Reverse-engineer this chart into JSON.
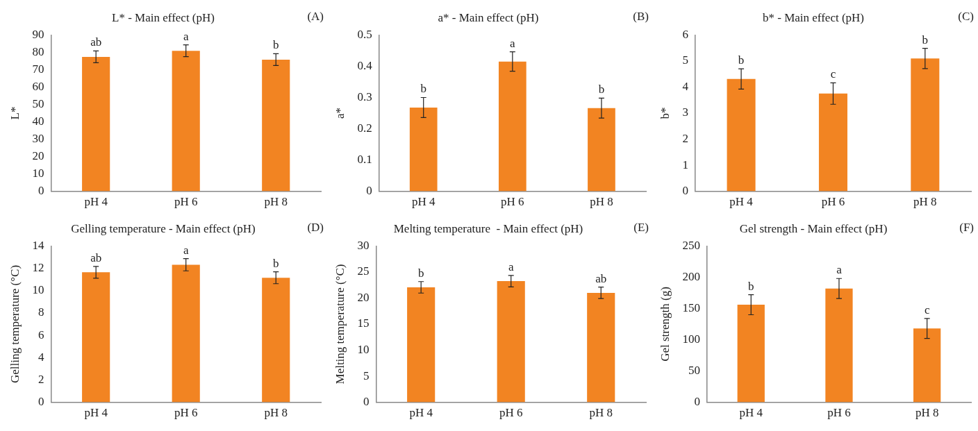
{
  "chart_data": [
    {
      "type": "bar",
      "title": "L* - Main effect (pH)",
      "ylabel": "L*",
      "categories": [
        "pH 4",
        "pH 6",
        "pH 8"
      ],
      "values": [
        77.4,
        80.9,
        75.8
      ],
      "errors": [
        3.4,
        3.4,
        3.4
      ],
      "color": "#f28422",
      "ylim": [
        0,
        90
      ],
      "yticks": [
        0,
        10,
        20,
        30,
        40,
        50,
        60,
        70,
        80,
        90
      ],
      "annotations": [
        "(A)",
        {
          "text": "ab",
          "x": "pH 4",
          "y": 80.8
        },
        {
          "text": "a",
          "x": "pH 6",
          "y": 84.3
        },
        {
          "text": "b",
          "x": "pH 8",
          "y": 79.2
        }
      ]
    },
    {
      "type": "bar",
      "title": "a* - Main effect (pH)",
      "ylabel": "a*",
      "categories": [
        "pH 4",
        "pH 6",
        "pH 8"
      ],
      "values": [
        0.268,
        0.415,
        0.266
      ],
      "errors": [
        0.032,
        0.031,
        0.032
      ],
      "color": "#f28422",
      "ylim": [
        0,
        0.5
      ],
      "yticks": [
        0,
        0.1,
        0.2,
        0.3,
        0.4,
        0.5
      ],
      "annotations": [
        "(B)",
        {
          "text": "b",
          "x": "pH 4",
          "y": 0.3
        },
        {
          "text": "a",
          "x": "pH 6",
          "y": 0.446
        },
        {
          "text": "b",
          "x": "pH 8",
          "y": 0.298
        }
      ]
    },
    {
      "type": "bar",
      "title": "b* - Main effect (pH)",
      "ylabel": "b*",
      "categories": [
        "pH 4",
        "pH 6",
        "pH 8"
      ],
      "values": [
        4.31,
        3.75,
        5.1
      ],
      "errors": [
        0.39,
        0.41,
        0.39
      ],
      "color": "#f28422",
      "ylim": [
        0,
        6
      ],
      "yticks": [
        0,
        1,
        2,
        3,
        4,
        5,
        6
      ],
      "annotations": [
        "(C)",
        {
          "text": "b",
          "x": "pH 4",
          "y": 4.7
        },
        {
          "text": "c",
          "x": "pH 6",
          "y": 4.16
        },
        {
          "text": "b",
          "x": "pH 8",
          "y": 5.49
        }
      ]
    },
    {
      "type": "bar",
      "title": "Gelling temperature - Main effect (pH)",
      "ylabel": "Gelling temperature (°C)",
      "categories": [
        "pH 4",
        "pH 6",
        "pH 8"
      ],
      "values": [
        11.64,
        12.32,
        11.15
      ],
      "errors": [
        0.53,
        0.55,
        0.53
      ],
      "color": "#f28422",
      "ylim": [
        0,
        14
      ],
      "yticks": [
        0,
        2,
        4,
        6,
        8,
        10,
        12,
        14
      ],
      "annotations": [
        "(D)",
        {
          "text": "ab",
          "x": "pH 4",
          "y": 12.17
        },
        {
          "text": "a",
          "x": "pH 6",
          "y": 12.87
        },
        {
          "text": "b",
          "x": "pH 8",
          "y": 11.68
        }
      ]
    },
    {
      "type": "bar",
      "title": "Melting temperature  - Main effect (pH)",
      "ylabel": "Melting temperature (°C)",
      "categories": [
        "pH 4",
        "pH 6",
        "pH 8"
      ],
      "values": [
        22.06,
        23.25,
        21.0
      ],
      "errors": [
        1.1,
        1.1,
        1.1
      ],
      "color": "#f28422",
      "ylim": [
        0,
        30
      ],
      "yticks": [
        0,
        5,
        10,
        15,
        20,
        25,
        30
      ],
      "annotations": [
        "(E)",
        {
          "text": "b",
          "x": "pH 4",
          "y": 23.16
        },
        {
          "text": "a",
          "x": "pH 6",
          "y": 24.35
        },
        {
          "text": "ab",
          "x": "pH 8",
          "y": 22.1
        }
      ]
    },
    {
      "type": "bar",
      "title": "Gel strength - Main effect (pH)",
      "ylabel": "Gel strength (g)",
      "categories": [
        "pH 4",
        "pH 6",
        "pH 8"
      ],
      "values": [
        156,
        182,
        118
      ],
      "errors": [
        16,
        16,
        16
      ],
      "color": "#f28422",
      "ylim": [
        0,
        250
      ],
      "yticks": [
        0,
        50,
        100,
        150,
        200,
        250
      ],
      "annotations": [
        "(F)",
        {
          "text": "b",
          "x": "pH 4",
          "y": 172
        },
        {
          "text": "a",
          "x": "pH 6",
          "y": 198
        },
        {
          "text": "c",
          "x": "pH 8",
          "y": 134
        }
      ]
    }
  ]
}
